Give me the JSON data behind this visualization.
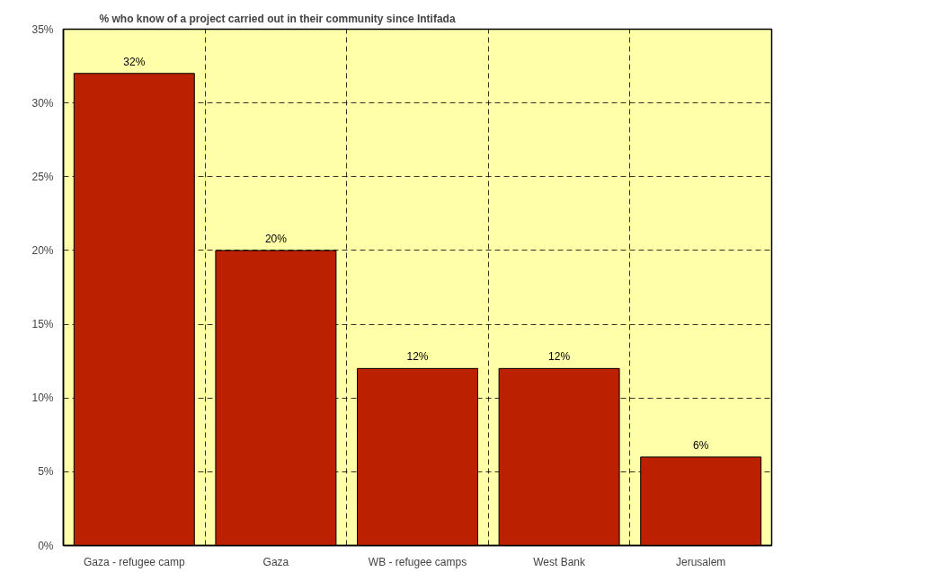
{
  "chart_data": {
    "type": "bar",
    "title": "% who know of a project carried out in their community since Intifada",
    "categories": [
      "Gaza - refugee camp",
      "Gaza",
      "WB - refugee camps",
      "West Bank",
      "Jerusalem"
    ],
    "values": [
      32,
      20,
      12,
      12,
      6
    ],
    "value_labels": [
      "32%",
      "20%",
      "12%",
      "12%",
      "6%"
    ],
    "color": "#bb2000",
    "ylim": [
      0,
      35
    ],
    "yticks": [
      {
        "value": 0,
        "label": "0%"
      },
      {
        "value": 5,
        "label": "5%"
      },
      {
        "value": 10,
        "label": "10%"
      },
      {
        "value": 15,
        "label": "15%"
      },
      {
        "value": 20,
        "label": "20%"
      },
      {
        "value": 25,
        "label": "25%"
      },
      {
        "value": 30,
        "label": "30%"
      },
      {
        "value": 35,
        "label": "35%"
      }
    ],
    "grid": true
  }
}
